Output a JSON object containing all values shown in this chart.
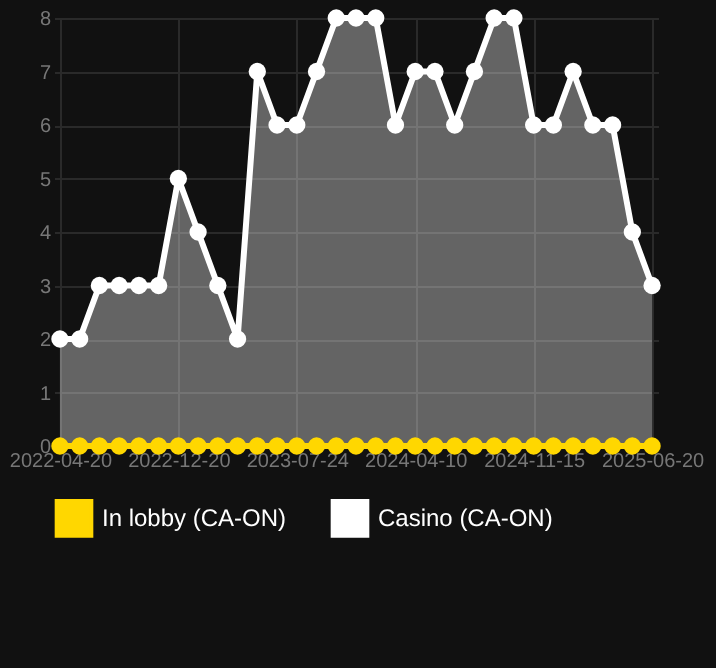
{
  "chart_data": {
    "type": "area",
    "categories": [
      "2022-04-20",
      null,
      null,
      null,
      null,
      null,
      "2022-12-20",
      null,
      null,
      null,
      null,
      null,
      "2023-07-24",
      null,
      null,
      null,
      null,
      null,
      "2024-04-10",
      null,
      null,
      null,
      null,
      null,
      "2024-11-15",
      null,
      null,
      null,
      null,
      null,
      "2025-06-20"
    ],
    "series": [
      {
        "name": "In lobby (CA-ON)",
        "type": "line",
        "color": "#ffd700",
        "values": [
          0,
          0,
          0,
          0,
          0,
          0,
          0,
          0,
          0,
          0,
          0,
          0,
          0,
          0,
          0,
          0,
          0,
          0,
          0,
          0,
          0,
          0,
          0,
          0,
          0,
          0,
          0,
          0,
          0,
          0,
          0
        ]
      },
      {
        "name": "Casino (CA-ON)",
        "color": "#ffffff",
        "values": [
          2,
          2,
          3,
          3,
          3,
          3,
          5,
          4,
          3,
          2,
          7,
          6,
          6,
          7,
          8,
          8,
          8,
          6,
          7,
          7,
          6,
          7,
          8,
          8,
          6,
          6,
          7,
          6,
          6,
          4,
          3
        ]
      }
    ],
    "ylim": [
      0,
      8
    ],
    "yticks": [
      0,
      1,
      2,
      3,
      4,
      5,
      6,
      7,
      8
    ],
    "grid": true,
    "legend": "bottom",
    "marker": "circle"
  }
}
